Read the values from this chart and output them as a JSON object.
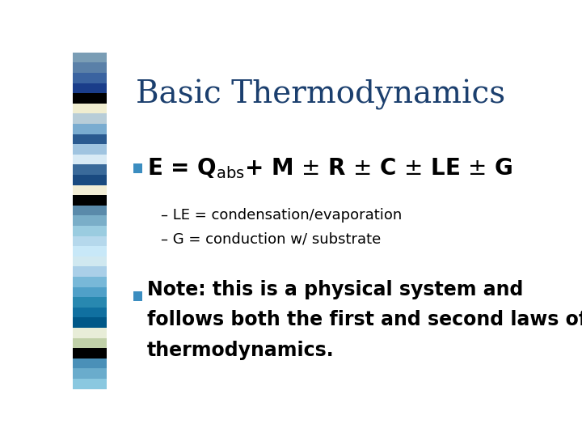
{
  "title": "Basic Thermodynamics",
  "title_color": "#1B3F6E",
  "title_fontsize": 28,
  "background_color": "#FFFFFF",
  "bullet_color": "#3B8DC0",
  "sidebar_strips": [
    "#7A9DB5",
    "#5A80A8",
    "#3A63A0",
    "#1A3D8A",
    "#000000",
    "#F0EDD0",
    "#B8CDD8",
    "#7AACD0",
    "#2A5A90",
    "#A0C4E0",
    "#D8EAF5",
    "#3A6A9A",
    "#1A4A80",
    "#F2EDD5",
    "#000000",
    "#5A8AAA",
    "#7AAEC8",
    "#9ACCE0",
    "#B5D8EC",
    "#C8E8F8",
    "#D0E8F0",
    "#AACFE8",
    "#78B8D8",
    "#50A0C8",
    "#2888B0",
    "#1070A0",
    "#005888",
    "#E8EDD8",
    "#C0D0A8",
    "#000000",
    "#4A90B8",
    "#6AACCC",
    "#8AC8E0"
  ],
  "eq_text": "E = Q",
  "eq_sub": "abs",
  "eq_rest": "+ M ± R ± C ± LE ± G",
  "eq_fontsize": 20,
  "sub1_text": "– LE = condensation/evaporation",
  "sub2_text": "– G = conduction w/ substrate",
  "sub_fontsize": 13,
  "note_line1": "Note: this is a physical system and",
  "note_line2": "follows both the first and second laws of",
  "note_line3": "thermodynamics.",
  "note_fontsize": 17
}
